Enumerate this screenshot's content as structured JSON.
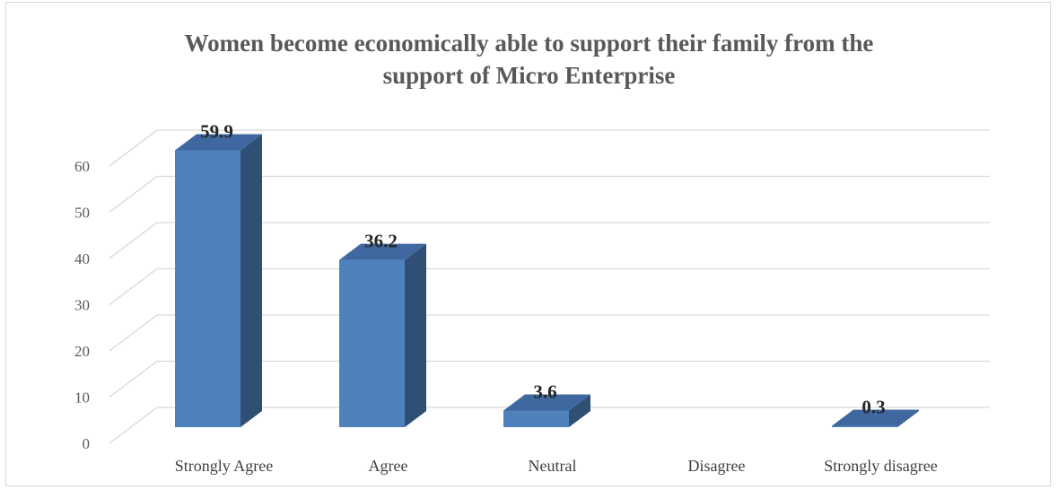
{
  "chart_data": {
    "type": "bar",
    "title_lines": [
      "Women become economically able to support their family from the",
      "support of Micro Enterprise"
    ],
    "categories": [
      "Strongly Agree",
      "Agree",
      "Neutral",
      "Disagree",
      "Strongly disagree"
    ],
    "values": [
      59.9,
      36.2,
      3.6,
      null,
      0.3
    ],
    "data_labels": [
      "59.9",
      "36.2",
      "3.6",
      "",
      "0.3"
    ],
    "ylim": [
      0,
      60
    ],
    "yticks": [
      0,
      10,
      20,
      30,
      40,
      50,
      60
    ],
    "grid": true,
    "three_d": true,
    "legend": "none",
    "xlabel": "",
    "ylabel": ""
  },
  "colors": {
    "bar_front": "#4f81bd",
    "bar_side": "#2f4f75",
    "bar_top": "#3f68a0",
    "gridline": "#d9d9d9",
    "text": "#595959"
  }
}
